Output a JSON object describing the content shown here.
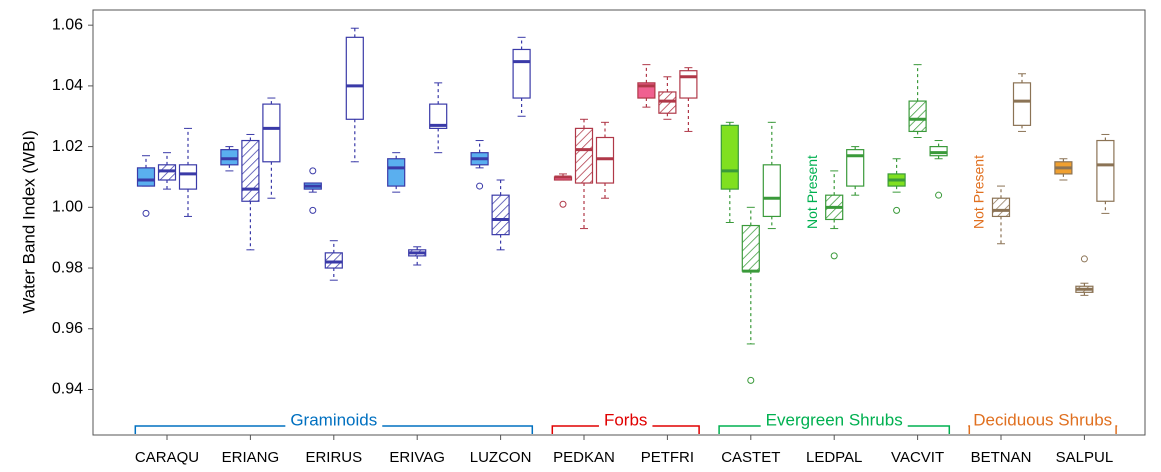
{
  "chart_data": {
    "type": "box",
    "y_label": "Water Band Index (WBI)",
    "ylim": [
      0.925,
      1.065
    ],
    "yticks": [
      0.94,
      0.96,
      0.98,
      {
        "value": 1,
        "label": "1.00"
      },
      1.02,
      1.04,
      1.06
    ],
    "series_styles": [
      "filled",
      "hatched",
      "open"
    ],
    "groups": [
      {
        "label": "Graminoids",
        "color": "#0070c0",
        "box_color": "#3a3aa8",
        "fill": "#5aafef",
        "categories": [
          {
            "name": "CARAQU",
            "boxes": [
              {
                "whislo": 1.007,
                "q1": 1.007,
                "med": 1.009,
                "q3": 1.013,
                "whishi": 1.017,
                "fliers": [
                  0.998
                ]
              },
              {
                "whislo": 1.006,
                "q1": 1.009,
                "med": 1.012,
                "q3": 1.014,
                "whishi": 1.018,
                "fliers": []
              },
              {
                "whislo": 0.997,
                "q1": 1.006,
                "med": 1.011,
                "q3": 1.014,
                "whishi": 1.026,
                "fliers": []
              }
            ]
          },
          {
            "name": "ERIANG",
            "boxes": [
              {
                "whislo": 1.012,
                "q1": 1.014,
                "med": 1.016,
                "q3": 1.019,
                "whishi": 1.02,
                "fliers": []
              },
              {
                "whislo": 0.986,
                "q1": 1.002,
                "med": 1.006,
                "q3": 1.022,
                "whishi": 1.024,
                "fliers": []
              },
              {
                "whislo": 1.003,
                "q1": 1.015,
                "med": 1.026,
                "q3": 1.034,
                "whishi": 1.036,
                "fliers": []
              }
            ]
          },
          {
            "name": "ERIRUS",
            "boxes": [
              {
                "whislo": 1.005,
                "q1": 1.006,
                "med": 1.007,
                "q3": 1.008,
                "whishi": 1.008,
                "fliers": [
                  1.012,
                  0.999
                ]
              },
              {
                "whislo": 0.976,
                "q1": 0.98,
                "med": 0.982,
                "q3": 0.985,
                "whishi": 0.989,
                "fliers": []
              },
              {
                "whislo": 1.015,
                "q1": 1.029,
                "med": 1.04,
                "q3": 1.056,
                "whishi": 1.059,
                "fliers": []
              }
            ]
          },
          {
            "name": "ERIVAG",
            "boxes": [
              {
                "whislo": 1.005,
                "q1": 1.007,
                "med": 1.013,
                "q3": 1.016,
                "whishi": 1.018,
                "fliers": []
              },
              {
                "whislo": 0.981,
                "q1": 0.984,
                "med": 0.985,
                "q3": 0.986,
                "whishi": 0.987,
                "fliers": []
              },
              {
                "whislo": 1.018,
                "q1": 1.026,
                "med": 1.027,
                "q3": 1.034,
                "whishi": 1.041,
                "fliers": []
              }
            ]
          },
          {
            "name": "LUZCON",
            "boxes": [
              {
                "whislo": 1.013,
                "q1": 1.014,
                "med": 1.016,
                "q3": 1.018,
                "whishi": 1.022,
                "fliers": [
                  1.007
                ]
              },
              {
                "whislo": 0.986,
                "q1": 0.991,
                "med": 0.996,
                "q3": 1.004,
                "whishi": 1.009,
                "fliers": []
              },
              {
                "whislo": 1.03,
                "q1": 1.036,
                "med": 1.048,
                "q3": 1.052,
                "whishi": 1.056,
                "fliers": []
              }
            ]
          }
        ]
      },
      {
        "label": "Forbs",
        "color": "#e00000",
        "box_color": "#b03848",
        "fill": "#f06090",
        "categories": [
          {
            "name": "PEDKAN",
            "boxes": [
              {
                "whislo": 1.009,
                "q1": 1.009,
                "med": 1.01,
                "q3": 1.01,
                "whishi": 1.011,
                "fliers": [
                  1.001
                ]
              },
              {
                "whislo": 0.993,
                "q1": 1.008,
                "med": 1.019,
                "q3": 1.026,
                "whishi": 1.029,
                "fliers": []
              },
              {
                "whislo": 1.003,
                "q1": 1.008,
                "med": 1.016,
                "q3": 1.023,
                "whishi": 1.028,
                "fliers": []
              }
            ]
          },
          {
            "name": "PETFRI",
            "boxes": [
              {
                "whislo": 1.033,
                "q1": 1.036,
                "med": 1.04,
                "q3": 1.041,
                "whishi": 1.047,
                "fliers": []
              },
              {
                "whislo": 1.029,
                "q1": 1.031,
                "med": 1.035,
                "q3": 1.038,
                "whishi": 1.043,
                "fliers": []
              },
              {
                "whislo": 1.025,
                "q1": 1.036,
                "med": 1.043,
                "q3": 1.045,
                "whishi": 1.046,
                "fliers": []
              }
            ]
          }
        ]
      },
      {
        "label": "Evergreen Shrubs",
        "color": "#00b050",
        "box_color": "#3a9a3a",
        "fill": "#80e020",
        "categories": [
          {
            "name": "CASTET",
            "boxes": [
              {
                "whislo": 0.995,
                "q1": 1.006,
                "med": 1.012,
                "q3": 1.027,
                "whishi": 1.028,
                "fliers": []
              },
              {
                "whislo": 0.955,
                "q1": 0.979,
                "med": 0.979,
                "q3": 0.994,
                "whishi": 1.0,
                "fliers": [
                  0.943
                ]
              },
              {
                "whislo": 0.993,
                "q1": 0.997,
                "med": 1.003,
                "q3": 1.014,
                "whishi": 1.028,
                "fliers": []
              }
            ]
          },
          {
            "name": "LEDPAL",
            "boxes": [
              {
                "note": "Not Present"
              },
              {
                "whislo": 0.993,
                "q1": 0.996,
                "med": 1.0,
                "q3": 1.004,
                "whishi": 1.012,
                "fliers": [
                  0.984
                ]
              },
              {
                "whislo": 1.004,
                "q1": 1.007,
                "med": 1.017,
                "q3": 1.019,
                "whishi": 1.02,
                "fliers": []
              }
            ]
          },
          {
            "name": "VACVIT",
            "boxes": [
              {
                "whislo": 1.005,
                "q1": 1.007,
                "med": 1.009,
                "q3": 1.011,
                "whishi": 1.016,
                "fliers": [
                  0.999
                ]
              },
              {
                "whislo": 1.023,
                "q1": 1.025,
                "med": 1.029,
                "q3": 1.035,
                "whishi": 1.047,
                "fliers": []
              },
              {
                "whislo": 1.016,
                "q1": 1.017,
                "med": 1.018,
                "q3": 1.02,
                "whishi": 1.022,
                "fliers": [
                  1.004
                ]
              }
            ]
          }
        ]
      },
      {
        "label": "Deciduous Shrubs",
        "color": "#e07020",
        "box_color": "#8b7355",
        "fill": "#f0a030",
        "categories": [
          {
            "name": "BETNAN",
            "boxes": [
              {
                "note": "Not Present"
              },
              {
                "whislo": 0.988,
                "q1": 0.997,
                "med": 0.999,
                "q3": 1.003,
                "whishi": 1.007,
                "fliers": []
              },
              {
                "whislo": 1.025,
                "q1": 1.027,
                "med": 1.035,
                "q3": 1.041,
                "whishi": 1.044,
                "fliers": []
              }
            ]
          },
          {
            "name": "SALPUL",
            "boxes": [
              {
                "whislo": 1.009,
                "q1": 1.011,
                "med": 1.013,
                "q3": 1.015,
                "whishi": 1.016,
                "fliers": []
              },
              {
                "whislo": 0.971,
                "q1": 0.972,
                "med": 0.973,
                "q3": 0.974,
                "whishi": 0.975,
                "fliers": [
                  0.983
                ]
              },
              {
                "whislo": 0.998,
                "q1": 1.002,
                "med": 1.014,
                "q3": 1.022,
                "whishi": 1.024,
                "fliers": []
              }
            ]
          }
        ]
      }
    ]
  }
}
